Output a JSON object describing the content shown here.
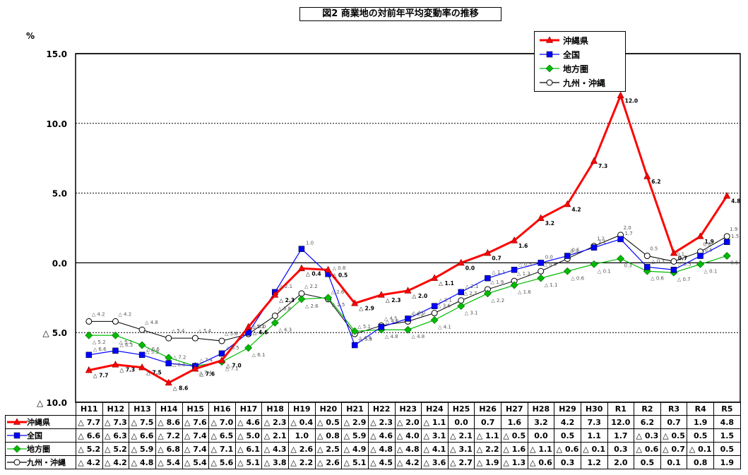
{
  "title": "図2 商業地の対前年平均変動率の推移",
  "chart_data": {
    "type": "line",
    "title": "図2 商業地の対前年平均変動率の推移",
    "ylabel": "%",
    "ylim": [
      -10,
      15
    ],
    "yticks": [
      {
        "value": 15,
        "label": "15.0"
      },
      {
        "value": 10,
        "label": "10.0"
      },
      {
        "value": 5,
        "label": "5.0"
      },
      {
        "value": 0,
        "label": "0.0"
      },
      {
        "value": -5,
        "label": "△ 5.0"
      },
      {
        "value": -10,
        "label": "△ 10.0"
      }
    ],
    "categories": [
      "H11",
      "H12",
      "H13",
      "H14",
      "H15",
      "H16",
      "H17",
      "H18",
      "H19",
      "H20",
      "H21",
      "H22",
      "H23",
      "H24",
      "H25",
      "H26",
      "H27",
      "H28",
      "H29",
      "H30",
      "R1",
      "R2",
      "R3",
      "R4",
      "R5"
    ],
    "legend_position": "top-right",
    "series": [
      {
        "name": "沖縄県",
        "color": "#ff0000",
        "marker": "triangle",
        "values": [
          -7.7,
          -7.3,
          -7.5,
          -8.6,
          -7.6,
          -7.0,
          -4.6,
          -2.3,
          -0.4,
          -0.5,
          -2.9,
          -2.3,
          -2.0,
          -1.1,
          0.0,
          0.7,
          1.6,
          3.2,
          4.2,
          7.3,
          12.0,
          6.2,
          0.7,
          1.9,
          4.8
        ],
        "labels": [
          "△ 7.7",
          "△ 7.3",
          "△ 7.5",
          "△ 8.6",
          "△ 7.6",
          "△ 7.0",
          "△ 4.6",
          "△ 2.3",
          "△ 0.4",
          "△ 0.5",
          "△ 2.9",
          "△ 2.3",
          "△ 2.0",
          "△ 1.1",
          "0.0",
          "0.7",
          "1.6",
          "3.2",
          "4.2",
          "7.3",
          "12.0",
          "6.2",
          "0.7",
          "1.9",
          "4.8"
        ]
      },
      {
        "name": "全国",
        "color": "#0000ff",
        "marker": "square",
        "values": [
          -6.6,
          -6.3,
          -6.6,
          -7.2,
          -7.4,
          -6.5,
          -5.0,
          -2.1,
          1.0,
          -0.8,
          -5.9,
          -4.6,
          -4.0,
          -3.1,
          -2.1,
          -1.1,
          -0.5,
          0.0,
          0.5,
          1.1,
          1.7,
          -0.3,
          -0.5,
          0.5,
          1.5
        ],
        "labels": [
          "△ 6.6",
          "△ 6.3",
          "△ 6.6",
          "△ 7.2",
          "△ 7.4",
          "△ 6.5",
          "△ 5.0",
          "△ 2.1",
          "1.0",
          "△ 0.8",
          "△ 5.9",
          "△ 4.6",
          "△ 4.0",
          "△ 3.1",
          "△ 2.1",
          "△ 1.1",
          "△ 0.5",
          "0.0",
          "0.5",
          "1.1",
          "1.7",
          "△ 0.3",
          "△ 0.5",
          "0.5",
          "1.5"
        ]
      },
      {
        "name": "地方圏",
        "color": "#00bb00",
        "marker": "diamond",
        "values": [
          -5.2,
          -5.2,
          -5.9,
          -6.8,
          -7.4,
          -7.1,
          -6.1,
          -4.3,
          -2.6,
          -2.5,
          -4.9,
          -4.8,
          -4.8,
          -4.1,
          -3.1,
          -2.2,
          -1.6,
          -1.1,
          -0.6,
          -0.1,
          0.3,
          -0.6,
          -0.7,
          -0.1,
          0.5
        ],
        "labels": [
          "△ 5.2",
          "△ 5.2",
          "△ 5.9",
          "△ 6.8",
          "△ 7.4",
          "△ 7.1",
          "△ 6.1",
          "△ 4.3",
          "△ 2.6",
          "△ 2.5",
          "△ 4.9",
          "△ 4.8",
          "△ 4.8",
          "△ 4.1",
          "△ 3.1",
          "△ 2.2",
          "△ 1.6",
          "△ 1.1",
          "△ 0.6",
          "△ 0.1",
          "0.3",
          "△ 0.6",
          "△ 0.7",
          "△ 0.1",
          "0.5"
        ]
      },
      {
        "name": "九州・沖縄",
        "color": "#000000",
        "marker": "circle",
        "values": [
          -4.2,
          -4.2,
          -4.8,
          -5.4,
          -5.4,
          -5.6,
          -5.1,
          -3.8,
          -2.2,
          -2.6,
          -5.1,
          -4.5,
          -4.2,
          -3.6,
          -2.7,
          -1.9,
          -1.3,
          -0.6,
          0.3,
          1.2,
          2.0,
          0.5,
          0.1,
          0.8,
          1.9
        ],
        "labels": [
          "△ 4.2",
          "△ 4.2",
          "△ 4.8",
          "△ 5.4",
          "△ 5.4",
          "△ 5.6",
          "△ 5.1",
          "△ 3.8",
          "△ 2.2",
          "△ 2.6",
          "△ 5.1",
          "△ 4.5",
          "△ 4.2",
          "△ 3.6",
          "△ 2.7",
          "△ 1.9",
          "△ 1.3",
          "△ 0.6",
          "0.3",
          "1.2",
          "2.0",
          "0.5",
          "0.1",
          "0.8",
          "1.9"
        ]
      }
    ]
  }
}
